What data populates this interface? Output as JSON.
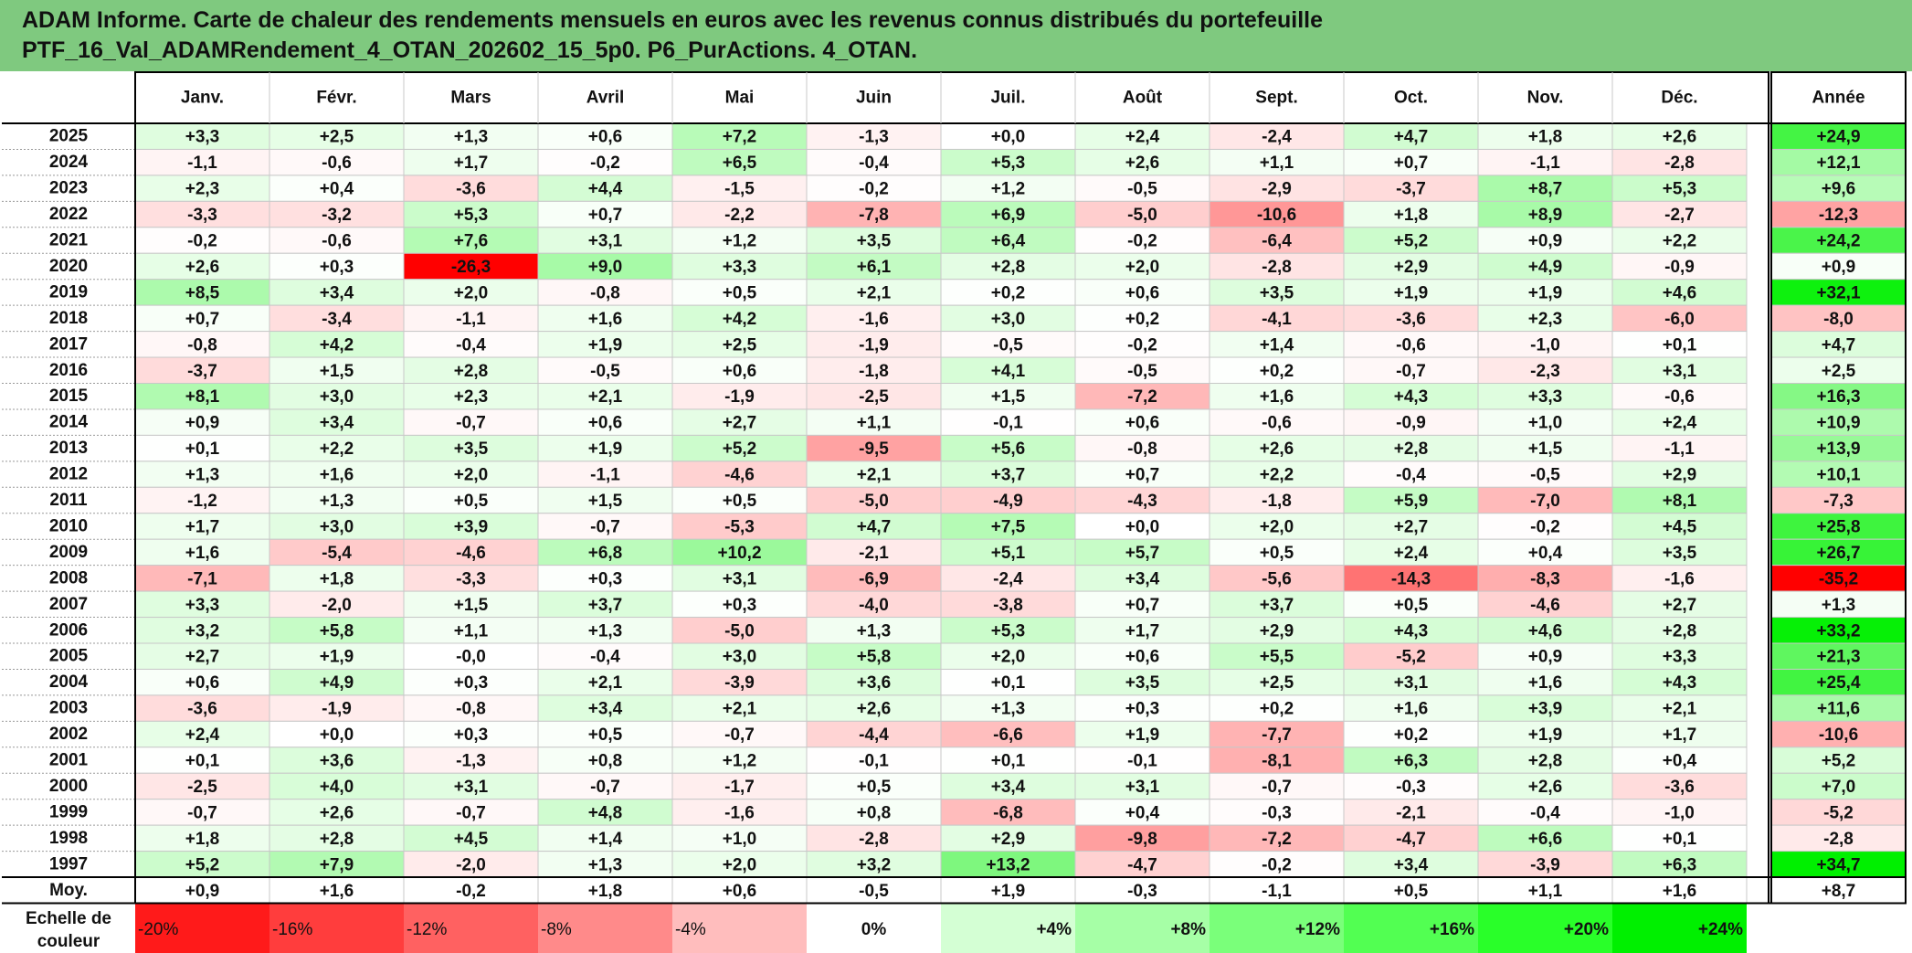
{
  "title": {
    "line1": "ADAM Informe. Carte de chaleur des rendements mensuels en euros avec les revenus connus distribués du portefeuille",
    "line2": "PTF_16_Val_ADAMRendement_4_OTAN_202602_15_5p0. P6_PurActions. 4_OTAN."
  },
  "chart_data": {
    "type": "heatmap",
    "columns": [
      "Janv.",
      "Févr.",
      "Mars",
      "Avril",
      "Mai",
      "Juin",
      "Juil.",
      "Août",
      "Sept.",
      "Oct.",
      "Nov.",
      "Déc."
    ],
    "year_column": "Année",
    "rows": [
      {
        "year": "2025",
        "values": [
          "+3,3",
          "+2,5",
          "+1,3",
          "+0,6",
          "+7,2",
          "-1,3",
          "+0,0",
          "+2,4",
          "-2,4",
          "+4,7",
          "+1,8",
          "+2,6"
        ],
        "annual": "+24,9"
      },
      {
        "year": "2024",
        "values": [
          "-1,1",
          "-0,6",
          "+1,7",
          "-0,2",
          "+6,5",
          "-0,4",
          "+5,3",
          "+2,6",
          "+1,1",
          "+0,7",
          "-1,1",
          "-2,8"
        ],
        "annual": "+12,1"
      },
      {
        "year": "2023",
        "values": [
          "+2,3",
          "+0,4",
          "-3,6",
          "+4,4",
          "-1,5",
          "-0,2",
          "+1,2",
          "-0,5",
          "-2,9",
          "-3,7",
          "+8,7",
          "+5,3"
        ],
        "annual": "+9,6"
      },
      {
        "year": "2022",
        "values": [
          "-3,3",
          "-3,2",
          "+5,3",
          "+0,7",
          "-2,2",
          "-7,8",
          "+6,9",
          "-5,0",
          "-10,6",
          "+1,8",
          "+8,9",
          "-2,7"
        ],
        "annual": "-12,3"
      },
      {
        "year": "2021",
        "values": [
          "-0,2",
          "-0,6",
          "+7,6",
          "+3,1",
          "+1,2",
          "+3,5",
          "+6,4",
          "-0,2",
          "-6,4",
          "+5,2",
          "+0,9",
          "+2,2"
        ],
        "annual": "+24,2"
      },
      {
        "year": "2020",
        "values": [
          "+2,6",
          "+0,3",
          "-26,3",
          "+9,0",
          "+3,3",
          "+6,1",
          "+2,8",
          "+2,0",
          "-2,8",
          "+2,9",
          "+4,9",
          "-0,9"
        ],
        "annual": "+0,9"
      },
      {
        "year": "2019",
        "values": [
          "+8,5",
          "+3,4",
          "+2,0",
          "-0,8",
          "+0,5",
          "+2,1",
          "+0,2",
          "+0,6",
          "+3,5",
          "+1,9",
          "+1,9",
          "+4,6"
        ],
        "annual": "+32,1"
      },
      {
        "year": "2018",
        "values": [
          "+0,7",
          "-3,4",
          "-1,1",
          "+1,6",
          "+4,2",
          "-1,6",
          "+3,0",
          "+0,2",
          "-4,1",
          "-3,6",
          "+2,3",
          "-6,0"
        ],
        "annual": "-8,0"
      },
      {
        "year": "2017",
        "values": [
          "-0,8",
          "+4,2",
          "-0,4",
          "+1,9",
          "+2,5",
          "-1,9",
          "-0,5",
          "-0,2",
          "+1,4",
          "-0,6",
          "-1,0",
          "+0,1"
        ],
        "annual": "+4,7"
      },
      {
        "year": "2016",
        "values": [
          "-3,7",
          "+1,5",
          "+2,8",
          "-0,5",
          "+0,6",
          "-1,8",
          "+4,1",
          "-0,5",
          "+0,2",
          "-0,7",
          "-2,3",
          "+3,1"
        ],
        "annual": "+2,5"
      },
      {
        "year": "2015",
        "values": [
          "+8,1",
          "+3,0",
          "+2,3",
          "+2,1",
          "-1,9",
          "-2,5",
          "+1,5",
          "-7,2",
          "+1,6",
          "+4,3",
          "+3,3",
          "-0,6"
        ],
        "annual": "+16,3"
      },
      {
        "year": "2014",
        "values": [
          "+0,9",
          "+3,4",
          "-0,7",
          "+0,6",
          "+2,7",
          "+1,1",
          "-0,1",
          "+0,6",
          "-0,6",
          "-0,9",
          "+1,0",
          "+2,4"
        ],
        "annual": "+10,9"
      },
      {
        "year": "2013",
        "values": [
          "+0,1",
          "+2,2",
          "+3,5",
          "+1,9",
          "+5,2",
          "-9,5",
          "+5,6",
          "-0,8",
          "+2,6",
          "+2,8",
          "+1,5",
          "-1,1"
        ],
        "annual": "+13,9"
      },
      {
        "year": "2012",
        "values": [
          "+1,3",
          "+1,6",
          "+2,0",
          "-1,1",
          "-4,6",
          "+2,1",
          "+3,7",
          "+0,7",
          "+2,2",
          "-0,4",
          "-0,5",
          "+2,9"
        ],
        "annual": "+10,1"
      },
      {
        "year": "2011",
        "values": [
          "-1,2",
          "+1,3",
          "+0,5",
          "+1,5",
          "+0,5",
          "-5,0",
          "-4,9",
          "-4,3",
          "-1,8",
          "+5,9",
          "-7,0",
          "+8,1"
        ],
        "annual": "-7,3"
      },
      {
        "year": "2010",
        "values": [
          "+1,7",
          "+3,0",
          "+3,9",
          "-0,7",
          "-5,3",
          "+4,7",
          "+7,5",
          "+0,0",
          "+2,0",
          "+2,7",
          "-0,2",
          "+4,5"
        ],
        "annual": "+25,8"
      },
      {
        "year": "2009",
        "values": [
          "+1,6",
          "-5,4",
          "-4,6",
          "+6,8",
          "+10,2",
          "-2,1",
          "+5,1",
          "+5,7",
          "+0,5",
          "+2,4",
          "+0,4",
          "+3,5"
        ],
        "annual": "+26,7"
      },
      {
        "year": "2008",
        "values": [
          "-7,1",
          "+1,8",
          "-3,3",
          "+0,3",
          "+3,1",
          "-6,9",
          "-2,4",
          "+3,4",
          "-5,6",
          "-14,3",
          "-8,3",
          "-1,6"
        ],
        "annual": "-35,2"
      },
      {
        "year": "2007",
        "values": [
          "+3,3",
          "-2,0",
          "+1,5",
          "+3,7",
          "+0,3",
          "-4,0",
          "-3,8",
          "+0,7",
          "+3,7",
          "+0,5",
          "-4,6",
          "+2,7"
        ],
        "annual": "+1,3"
      },
      {
        "year": "2006",
        "values": [
          "+3,2",
          "+5,8",
          "+1,1",
          "+1,3",
          "-5,0",
          "+1,3",
          "+5,3",
          "+1,7",
          "+2,9",
          "+4,3",
          "+4,6",
          "+2,8"
        ],
        "annual": "+33,2"
      },
      {
        "year": "2005",
        "values": [
          "+2,7",
          "+1,9",
          "-0,0",
          "-0,4",
          "+3,0",
          "+5,8",
          "+2,0",
          "+0,6",
          "+5,5",
          "-5,2",
          "+0,9",
          "+3,3"
        ],
        "annual": "+21,3"
      },
      {
        "year": "2004",
        "values": [
          "+0,6",
          "+4,9",
          "+0,3",
          "+2,1",
          "-3,9",
          "+3,6",
          "+0,1",
          "+3,5",
          "+2,5",
          "+3,1",
          "+1,6",
          "+4,3"
        ],
        "annual": "+25,4"
      },
      {
        "year": "2003",
        "values": [
          "-3,6",
          "-1,9",
          "-0,8",
          "+3,4",
          "+2,1",
          "+2,6",
          "+1,3",
          "+0,3",
          "+0,2",
          "+1,6",
          "+3,9",
          "+2,1"
        ],
        "annual": "+11,6"
      },
      {
        "year": "2002",
        "values": [
          "+2,4",
          "+0,0",
          "+0,3",
          "+0,5",
          "-0,7",
          "-4,4",
          "-6,6",
          "+1,9",
          "-7,7",
          "+0,2",
          "+1,9",
          "+1,7"
        ],
        "annual": "-10,6"
      },
      {
        "year": "2001",
        "values": [
          "+0,1",
          "+3,6",
          "-1,3",
          "+0,8",
          "+1,2",
          "-0,1",
          "+0,1",
          "-0,1",
          "-8,1",
          "+6,3",
          "+2,8",
          "+0,4"
        ],
        "annual": "+5,2"
      },
      {
        "year": "2000",
        "values": [
          "-2,5",
          "+4,0",
          "+3,1",
          "-0,7",
          "-1,7",
          "+0,5",
          "+3,4",
          "+3,1",
          "-0,7",
          "-0,3",
          "+2,6",
          "-3,6"
        ],
        "annual": "+7,0"
      },
      {
        "year": "1999",
        "values": [
          "-0,7",
          "+2,6",
          "-0,7",
          "+4,8",
          "-1,6",
          "+0,8",
          "-6,8",
          "+0,4",
          "-0,3",
          "-2,1",
          "-0,4",
          "-1,0"
        ],
        "annual": "-5,2"
      },
      {
        "year": "1998",
        "values": [
          "+1,8",
          "+2,8",
          "+4,5",
          "+1,4",
          "+1,0",
          "-2,8",
          "+2,9",
          "-9,8",
          "-7,2",
          "-4,7",
          "+6,6",
          "+0,1"
        ],
        "annual": "-2,8"
      },
      {
        "year": "1997",
        "values": [
          "+5,2",
          "+7,9",
          "-2,0",
          "+1,3",
          "+2,0",
          "+3,2",
          "+13,2",
          "-4,7",
          "-0,2",
          "+3,4",
          "-3,9",
          "+6,3"
        ],
        "annual": "+34,7"
      }
    ],
    "average": {
      "label": "Moy.",
      "values": [
        "+0,9",
        "+1,6",
        "-0,2",
        "+1,8",
        "+0,6",
        "-0,5",
        "+1,9",
        "-0,3",
        "-1,1",
        "+0,5",
        "+1,1",
        "+1,6"
      ],
      "annual": "+8,7"
    },
    "scale": {
      "label_line1": "Echelle de",
      "label_line2": "couleur",
      "stops": [
        {
          "label": "-20%",
          "value": -20,
          "color": "#ff1a1a",
          "align": "left"
        },
        {
          "label": "-16%",
          "value": -16,
          "color": "#ff3d3d",
          "align": "left"
        },
        {
          "label": "-12%",
          "value": -12,
          "color": "#ff6161",
          "align": "left"
        },
        {
          "label": "-8%",
          "value": -8,
          "color": "#ff8a8a",
          "align": "left"
        },
        {
          "label": "-4%",
          "value": -4,
          "color": "#ffbdbd",
          "align": "left"
        },
        {
          "label": "0%",
          "value": 0,
          "color": "#ffffff",
          "align": "center"
        },
        {
          "label": "+4%",
          "value": 4,
          "color": "#d4ffd4",
          "align": "right"
        },
        {
          "label": "+8%",
          "value": 8,
          "color": "#a6ffa6",
          "align": "right"
        },
        {
          "label": "+12%",
          "value": 12,
          "color": "#7aff7a",
          "align": "right"
        },
        {
          "label": "+16%",
          "value": 16,
          "color": "#52ff52",
          "align": "right"
        },
        {
          "label": "+20%",
          "value": 20,
          "color": "#29ff29",
          "align": "right"
        },
        {
          "label": "+24%",
          "value": 24,
          "color": "#00f000",
          "align": "right"
        }
      ]
    },
    "colors": {
      "title_background": "#7fc97f",
      "negative_max": "#ff0000",
      "positive_max": "#00e600",
      "neutral": "#ffffff"
    }
  }
}
